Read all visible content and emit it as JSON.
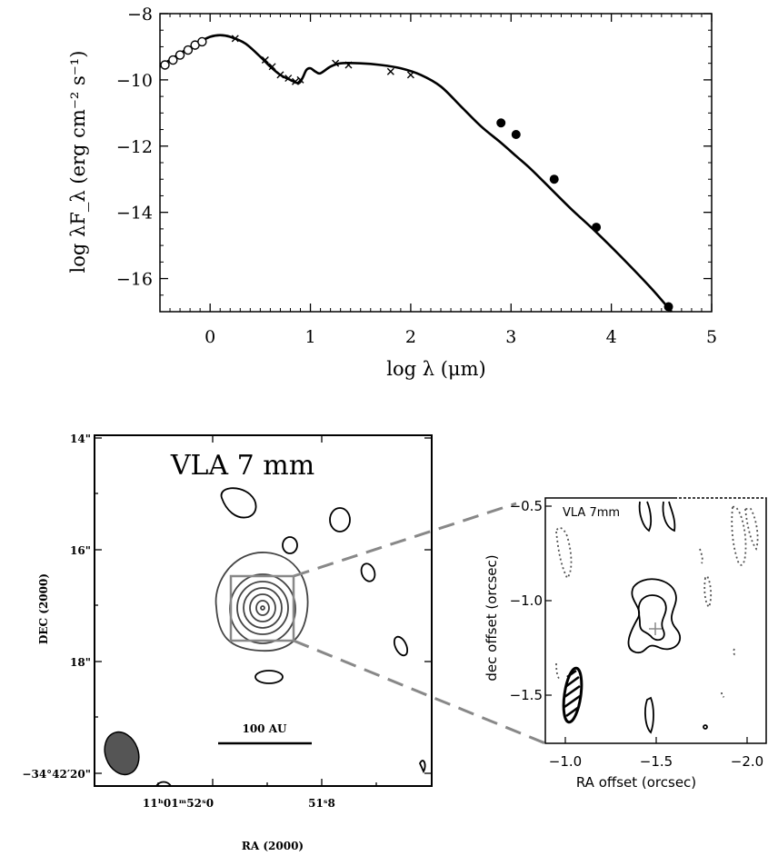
{
  "chart_data": [
    {
      "type": "line",
      "title": "",
      "xlabel": "log λ (μm)",
      "ylabel": "log λF_λ (erg cm⁻² s⁻¹)",
      "xlim": [
        -0.5,
        5
      ],
      "ylim": [
        -17,
        -8
      ],
      "x_ticks": [
        "0",
        "1",
        "2",
        "3",
        "4",
        "5"
      ],
      "y_ticks": [
        "−8",
        "−10",
        "−12",
        "−14",
        "−16"
      ],
      "series": [
        {
          "style": "solid-line",
          "x": [
            -0.5,
            -0.3,
            -0.1,
            0.0,
            0.1,
            0.2,
            0.35,
            0.5,
            0.6,
            0.7,
            0.8,
            0.88,
            0.92,
            0.96,
            1.0,
            1.05,
            1.1,
            1.2,
            1.3,
            1.5,
            1.7,
            1.9,
            2.1,
            2.3,
            2.5,
            2.7,
            2.9,
            3.05,
            3.2,
            3.4,
            3.6,
            3.85,
            4.1,
            4.4,
            4.6
          ],
          "y": [
            -9.6,
            -9.2,
            -8.85,
            -8.7,
            -8.65,
            -8.7,
            -8.9,
            -9.3,
            -9.6,
            -9.85,
            -10.0,
            -10.1,
            -9.95,
            -9.7,
            -9.65,
            -9.75,
            -9.8,
            -9.6,
            -9.5,
            -9.5,
            -9.55,
            -9.65,
            -9.85,
            -10.2,
            -10.8,
            -11.4,
            -11.9,
            -12.3,
            -12.7,
            -13.3,
            -13.9,
            -14.6,
            -15.35,
            -16.3,
            -17.0
          ]
        },
        {
          "marker": "open-circle",
          "x": [
            -0.45,
            -0.37,
            -0.3,
            -0.22,
            -0.15,
            -0.08
          ],
          "y": [
            -9.55,
            -9.4,
            -9.25,
            -9.1,
            -8.95,
            -8.85
          ]
        },
        {
          "marker": "filled-circle",
          "x": [
            2.9,
            3.05,
            3.43,
            3.85,
            4.57
          ],
          "y": [
            -11.3,
            -11.65,
            -13.0,
            -14.45,
            -16.85
          ]
        },
        {
          "marker": "cross",
          "x": [
            0.25,
            0.55,
            0.62,
            0.7,
            0.78,
            0.85,
            0.9,
            1.25,
            1.38,
            1.8,
            2.0
          ],
          "y": [
            -8.75,
            -9.4,
            -9.6,
            -9.85,
            -9.95,
            -10.05,
            -10.0,
            -9.5,
            -9.55,
            -9.75,
            -9.85
          ]
        }
      ]
    },
    {
      "type": "contour",
      "title": "VLA 7 mm",
      "xlabel": "RA (2000)",
      "ylabel": "DEC (2000)",
      "x_ticks": [
        "11ʰ01ᵐ52ˢ0",
        "51ˢ8"
      ],
      "y_ticks": [
        "14\"",
        "16\"",
        "18\"",
        "−34°42′20\""
      ],
      "scale_bar_label": "100 AU"
    },
    {
      "type": "contour",
      "title": "VLA 7mm",
      "xlabel": "RA offset (orcsec)",
      "ylabel": "dec offset (orcsec)",
      "x_ticks": [
        "−1.0",
        "−1.5",
        "−2.0"
      ],
      "y_ticks": [
        "−0.5",
        "−1.0",
        "−1.5"
      ]
    }
  ]
}
